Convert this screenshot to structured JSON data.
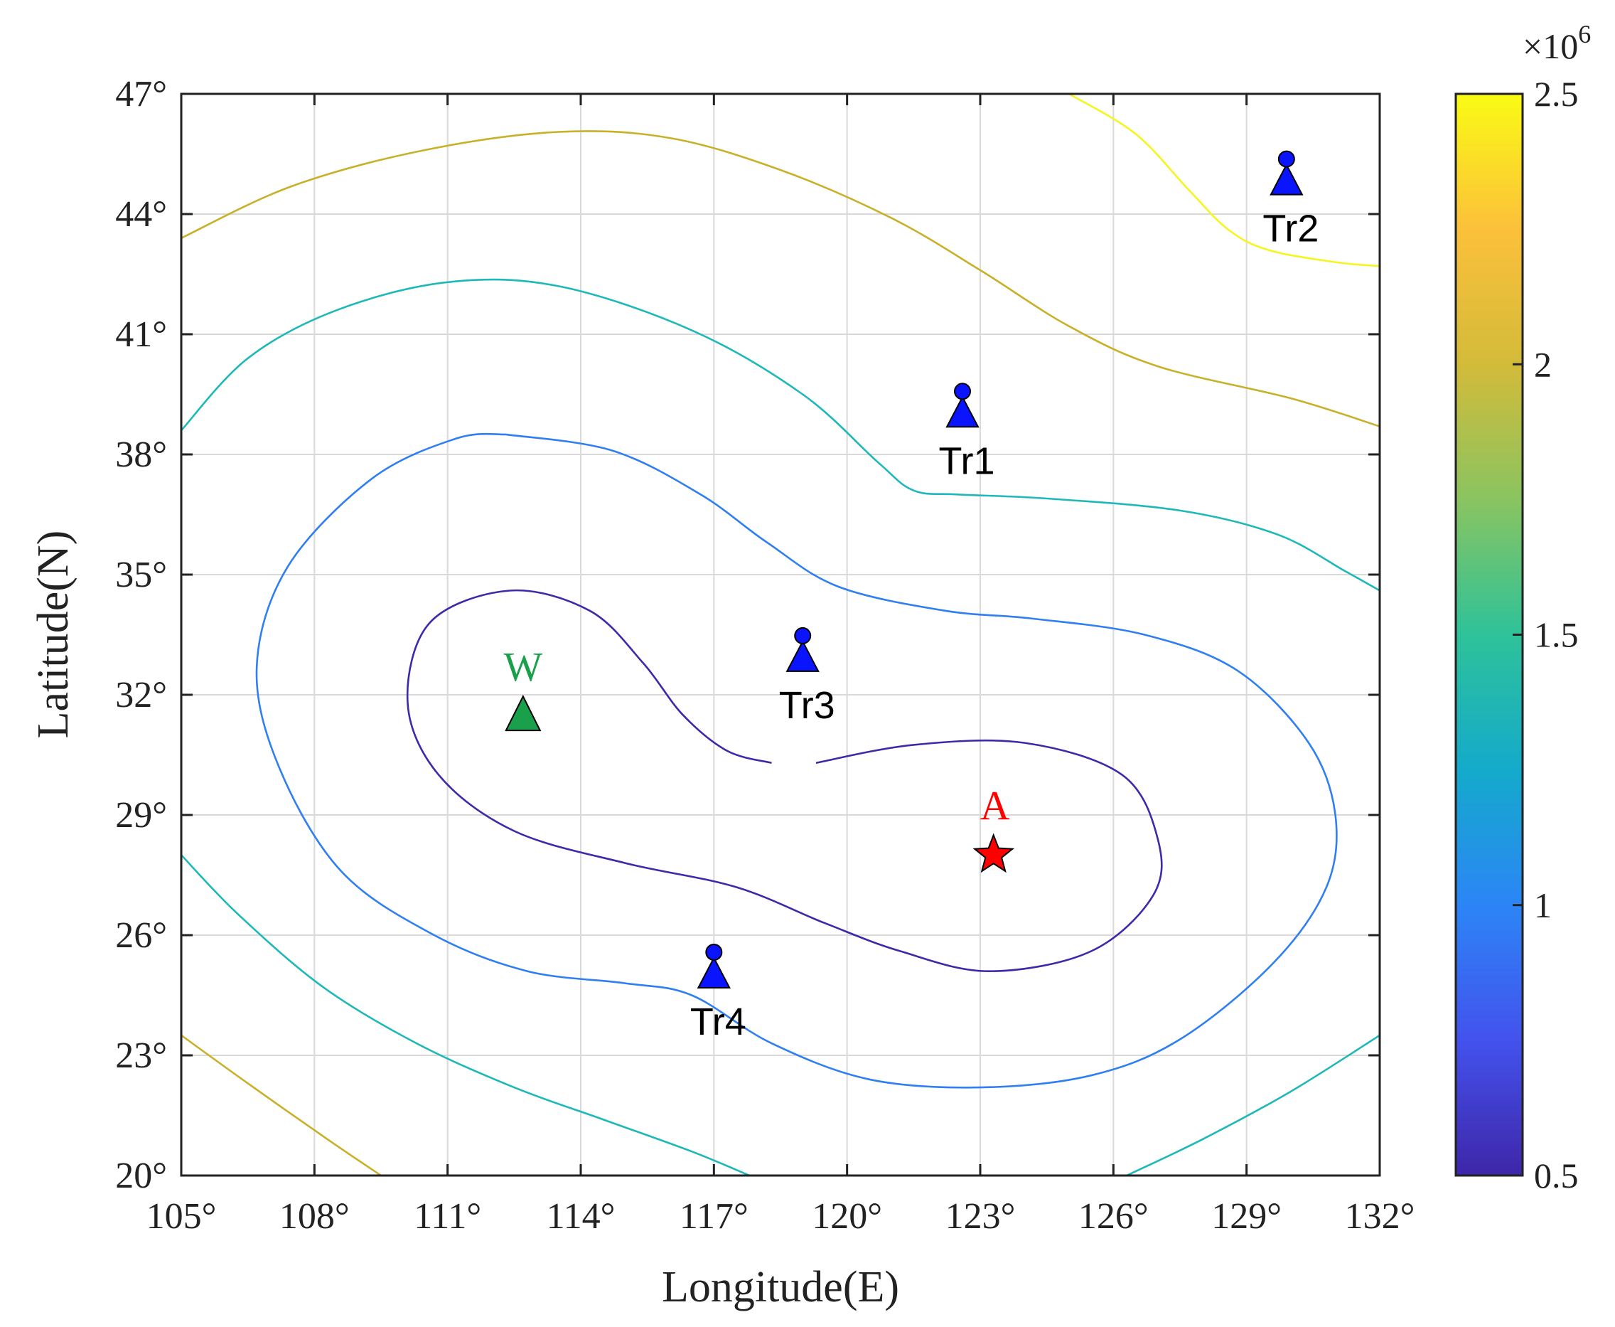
{
  "chart_data": {
    "type": "contour",
    "xlabel": "Longitude(E)",
    "ylabel": "Latitude(N)",
    "xlim": [
      105,
      132
    ],
    "ylim": [
      20,
      47
    ],
    "x_ticks": [
      105,
      108,
      111,
      114,
      117,
      120,
      123,
      126,
      129,
      132
    ],
    "x_tick_labels": [
      "105°",
      "108°",
      "111°",
      "114°",
      "117°",
      "120°",
      "123°",
      "126°",
      "129°",
      "132°"
    ],
    "y_ticks": [
      20,
      23,
      26,
      29,
      32,
      35,
      38,
      41,
      44,
      47
    ],
    "y_tick_labels": [
      "20°",
      "23°",
      "26°",
      "29°",
      "32°",
      "35°",
      "38°",
      "41°",
      "44°",
      "47°"
    ],
    "grid": true,
    "colorbar": {
      "min": 0.5,
      "max": 2.5,
      "ticks": [
        0.5,
        1,
        1.5,
        2,
        2.5
      ],
      "tick_labels": [
        "0.5",
        "1",
        "1.5",
        "2",
        "2.5"
      ],
      "exponent_base": "×10",
      "exponent_power": "6",
      "colormap": [
        "#3e26a8",
        "#4352ed",
        "#2c85f6",
        "#14aacb",
        "#2ec299",
        "#8ac460",
        "#d3bb3a",
        "#fcc03a",
        "#f9fb14"
      ]
    },
    "contours": [
      {
        "level": 0.6,
        "color": "#3d2aa8",
        "points": [
          [
            119.3,
            30.3
          ],
          [
            121.5,
            30.75
          ],
          [
            124,
            30.8
          ],
          [
            126.2,
            30.0
          ],
          [
            127,
            28.4
          ],
          [
            126.9,
            27.0
          ],
          [
            125.5,
            25.6
          ],
          [
            123.2,
            25.1
          ],
          [
            121.2,
            25.6
          ],
          [
            119.5,
            26.3
          ],
          [
            117.5,
            27.2
          ],
          [
            115,
            27.8
          ],
          [
            112.5,
            28.6
          ],
          [
            110.8,
            30.0
          ],
          [
            110.1,
            31.8
          ],
          [
            110.6,
            33.8
          ],
          [
            112.4,
            34.6
          ],
          [
            114.2,
            34.1
          ],
          [
            115.4,
            32.8
          ],
          [
            116.3,
            31.5
          ],
          [
            117.3,
            30.6
          ],
          [
            118.3,
            30.3
          ]
        ]
      },
      {
        "level": 1.05,
        "color": "#2f7ff2",
        "points": [
          [
            112.3,
            38.5
          ],
          [
            114.7,
            38.1
          ],
          [
            116.7,
            37.0
          ],
          [
            118.2,
            35.8
          ],
          [
            119.8,
            34.7
          ],
          [
            122.2,
            34.1
          ],
          [
            124.2,
            33.9
          ],
          [
            126.7,
            33.5
          ],
          [
            128.8,
            32.6
          ],
          [
            130.4,
            30.8
          ],
          [
            131.0,
            29.0
          ],
          [
            130.8,
            27.2
          ],
          [
            129.6,
            25.3
          ],
          [
            127.5,
            23.4
          ],
          [
            125.5,
            22.5
          ],
          [
            123.0,
            22.2
          ],
          [
            120.5,
            22.4
          ],
          [
            118.3,
            23.3
          ],
          [
            116.5,
            24.5
          ],
          [
            115.0,
            24.8
          ],
          [
            112.8,
            25.1
          ],
          [
            110.7,
            26.0
          ],
          [
            108.6,
            27.6
          ],
          [
            107.2,
            30.2
          ],
          [
            106.7,
            32.7
          ],
          [
            107.4,
            35.2
          ],
          [
            109.3,
            37.4
          ],
          [
            111.2,
            38.4
          ],
          [
            112.3,
            38.5
          ]
        ]
      },
      {
        "level": 1.5,
        "color": "#1fb8b8",
        "points": [
          [
            105,
            38.6
          ],
          [
            106.5,
            40.4
          ],
          [
            108.5,
            41.6
          ],
          [
            111,
            42.3
          ],
          [
            113.5,
            42.2
          ],
          [
            116.5,
            41.1
          ],
          [
            119.0,
            39.5
          ],
          [
            120.7,
            37.8
          ],
          [
            121.5,
            37.1
          ],
          [
            122.5,
            37.0
          ],
          [
            124.5,
            36.9
          ],
          [
            127.5,
            36.6
          ],
          [
            129.7,
            36.0
          ],
          [
            131.2,
            35.1
          ],
          [
            132,
            34.6
          ]
        ]
      },
      {
        "level": 1.5,
        "color": "#1fb8b8",
        "points": [
          [
            105,
            28.0
          ],
          [
            106.3,
            26.5
          ],
          [
            108.2,
            24.7
          ],
          [
            110.3,
            23.3
          ],
          [
            112.5,
            22.2
          ],
          [
            114.5,
            21.4
          ],
          [
            116.5,
            20.6
          ],
          [
            117.8,
            20.0
          ]
        ]
      },
      {
        "level": 1.5,
        "color": "#1fb8b8",
        "points": [
          [
            126.3,
            20.0
          ],
          [
            128.0,
            20.9
          ],
          [
            130.0,
            22.1
          ],
          [
            132,
            23.5
          ]
        ]
      },
      {
        "level": 2.05,
        "color": "#c8b028",
        "points": [
          [
            105,
            43.4
          ],
          [
            107.5,
            44.7
          ],
          [
            110.5,
            45.6
          ],
          [
            113.5,
            46.05
          ],
          [
            116.0,
            45.9
          ],
          [
            118.5,
            45.1
          ],
          [
            121.0,
            43.9
          ],
          [
            123.0,
            42.6
          ],
          [
            125.0,
            41.2
          ],
          [
            127.0,
            40.2
          ],
          [
            130.0,
            39.4
          ],
          [
            132,
            38.7
          ]
        ]
      },
      {
        "level": 2.05,
        "color": "#c8b028",
        "points": [
          [
            105,
            23.5
          ],
          [
            106.5,
            22.3
          ],
          [
            108.3,
            20.9
          ],
          [
            109.5,
            20.0
          ]
        ]
      },
      {
        "level": 2.5,
        "color": "#f5f520",
        "points": [
          [
            125.0,
            47.0
          ],
          [
            126.5,
            46.0
          ],
          [
            127.7,
            44.6
          ],
          [
            128.6,
            43.6
          ],
          [
            129.5,
            43.1
          ],
          [
            131.0,
            42.8
          ],
          [
            132,
            42.7
          ]
        ]
      }
    ],
    "stations": [
      {
        "name": "Tr1",
        "lon": 122.6,
        "lat": 38.9
      },
      {
        "name": "Tr2",
        "lon": 129.9,
        "lat": 44.7
      },
      {
        "name": "Tr3",
        "lon": 119.0,
        "lat": 32.8
      },
      {
        "name": "Tr4",
        "lon": 117.0,
        "lat": 24.9
      }
    ],
    "markers": [
      {
        "label": "W",
        "lon": 112.7,
        "lat": 31.5,
        "symbol": "triangle",
        "color": "#1aa04a"
      },
      {
        "label": "A",
        "lon": 123.3,
        "lat": 28.0,
        "symbol": "star",
        "color": "#ff0000"
      }
    ]
  }
}
